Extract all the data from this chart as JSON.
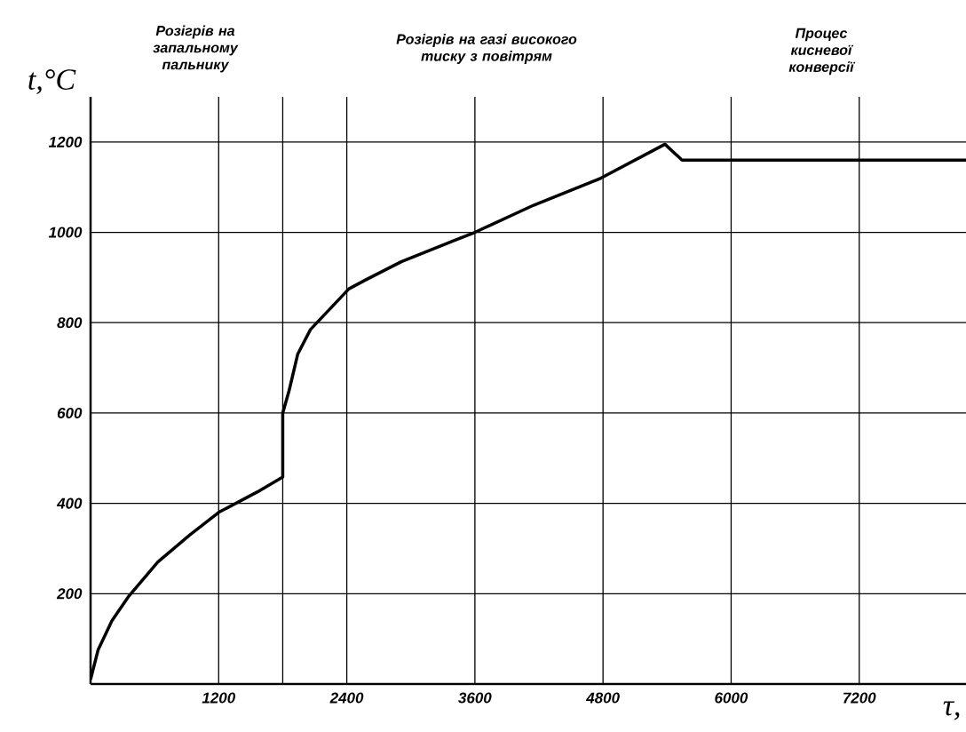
{
  "chart_data": {
    "type": "line",
    "xlabel": "τ,",
    "ylabel": "t,°C",
    "annotations": [
      "Розігрів на запальному пальнику",
      "Розігрів на газі високого тиску з повітрям",
      "Процес кисневої конверсії"
    ],
    "series": [
      {
        "color": "#000000",
        "x": [
          0,
          70,
          200,
          360,
          630,
          930,
          1200,
          1560,
          1800,
          1800,
          1860,
          1940,
          2060,
          2180,
          2300,
          2420,
          2580,
          2910,
          3600,
          4150,
          4780,
          5380,
          5540,
          8200
        ],
        "values": [
          10,
          75,
          140,
          195,
          270,
          330,
          380,
          425,
          458,
          600,
          650,
          730,
          785,
          815,
          845,
          875,
          895,
          935,
          1000,
          1060,
          1120,
          1195,
          1160,
          1160
        ]
      }
    ],
    "xlim": [
      0,
      8200
    ],
    "ylim": [
      0,
      1300
    ],
    "xticks": [
      1200,
      {
        "value": 1800,
        "label": null
      },
      2400,
      3600,
      4800,
      6000,
      7200
    ],
    "yticks": [
      200,
      400,
      600,
      800,
      1000,
      1200
    ],
    "grid": true,
    "marker": "none",
    "line_style": "solid"
  }
}
